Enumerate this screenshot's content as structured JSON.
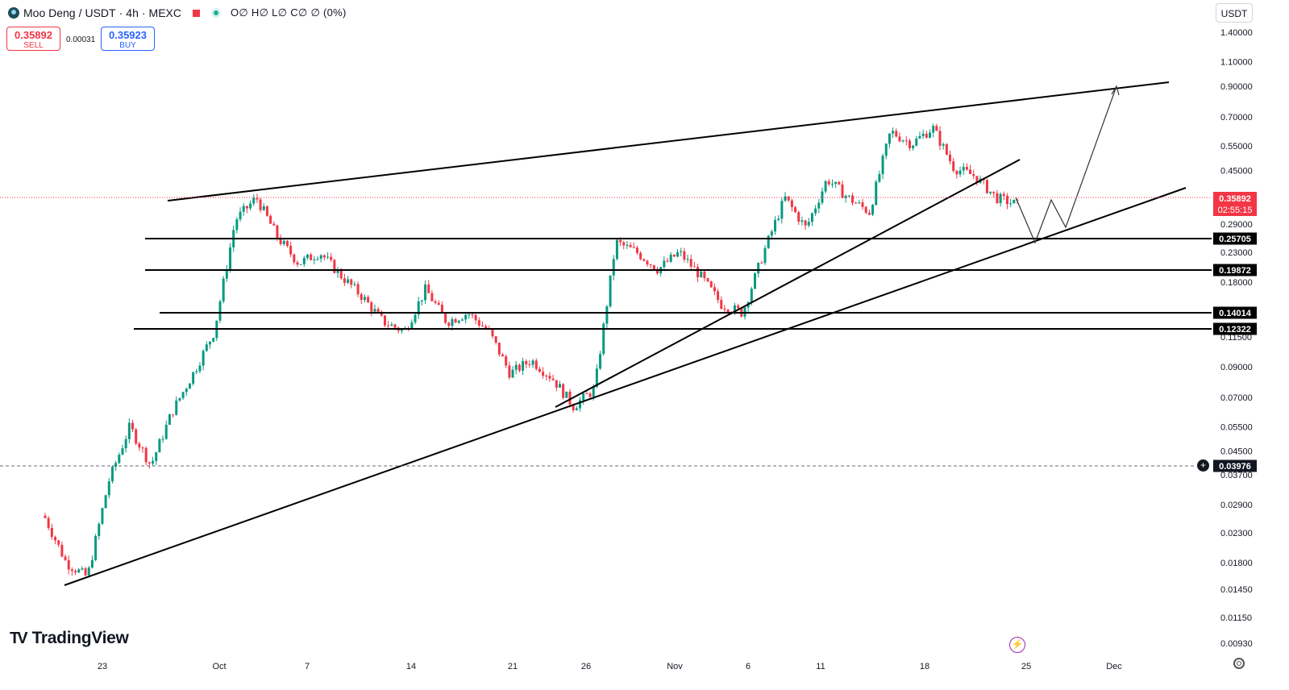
{
  "header": {
    "symbol": "Moo Deng",
    "quote": "USDT",
    "interval": "4h",
    "exchange": "MEXC",
    "ohlc": "O∅ H∅ L∅ C∅ ∅ (0%)"
  },
  "trade": {
    "sell_price": "0.35892",
    "sell_label": "SELL",
    "spread": "0.00031",
    "buy_price": "0.35923",
    "buy_label": "BUY"
  },
  "currency_button": "USDT",
  "branding": "TradingView",
  "colors": {
    "up": "#089981",
    "down": "#f23645",
    "drawing": "#000000",
    "axis_text": "#131722"
  },
  "chart_data": {
    "type": "candlestick",
    "scale": "log",
    "y_axis_ticks": [
      "1.40000",
      "1.10000",
      "0.90000",
      "0.70000",
      "0.55000",
      "0.45000",
      "0.29000",
      "0.23000",
      "0.18000",
      "0.11500",
      "0.09000",
      "0.07000",
      "0.05500",
      "0.04500",
      "0.03700",
      "0.02900",
      "0.02300",
      "0.01800",
      "0.01450",
      "0.01150",
      "0.00930"
    ],
    "x_axis_ticks": [
      "23",
      "Oct",
      "7",
      "14",
      "21",
      "26",
      "Nov",
      "6",
      "11",
      "18",
      "25",
      "Dec"
    ],
    "last_price": {
      "value": "0.35892",
      "countdown": "02:55:15"
    },
    "crosshair_price": "0.03976",
    "horizontal_levels": [
      "0.25705",
      "0.19872",
      "0.14014",
      "0.12322"
    ],
    "series": [
      {
        "name": "",
        "approx_close_path": [
          0.026,
          0.018,
          0.016,
          0.035,
          0.055,
          0.04,
          0.062,
          0.085,
          0.12,
          0.3,
          0.36,
          0.26,
          0.21,
          0.23,
          0.19,
          0.16,
          0.13,
          0.12,
          0.17,
          0.13,
          0.14,
          0.12,
          0.085,
          0.095,
          0.082,
          0.065,
          0.075,
          0.25,
          0.23,
          0.2,
          0.23,
          0.19,
          0.15,
          0.14,
          0.23,
          0.36,
          0.28,
          0.42,
          0.36,
          0.32,
          0.62,
          0.56,
          0.64,
          0.46,
          0.43,
          0.36,
          0.34
        ]
      }
    ],
    "drawn_lines": "rising wedge with upper and lower trend lines, four horizontal support levels, projected zig-zag path to 0.90"
  }
}
